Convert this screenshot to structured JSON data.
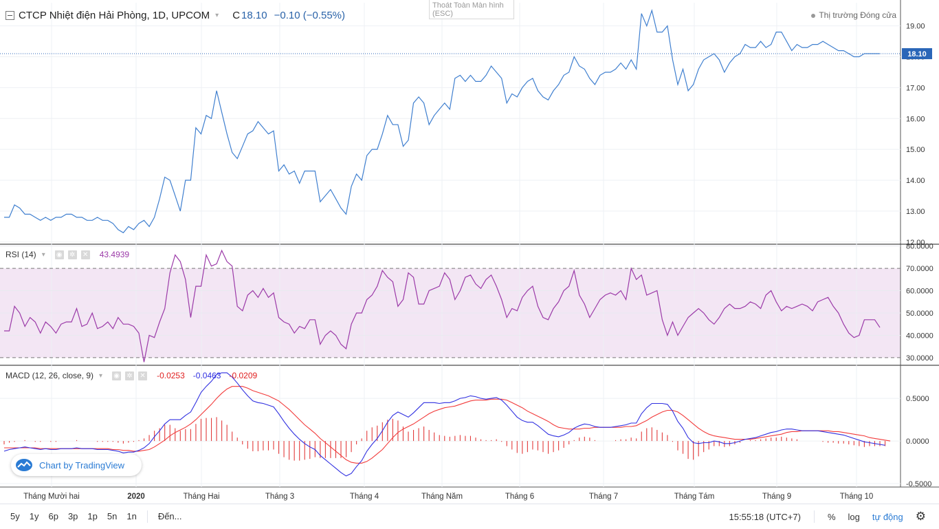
{
  "header": {
    "symbol_title": "CTCP Nhiệt điện Hải Phòng, 1D, UPCOM",
    "close_prefix": "C",
    "close_value": "18.10",
    "change": "−0.10 (−0.55%)"
  },
  "esc_hint": {
    "line1": "Thoát Toàn Màn hình",
    "line2": "(ESC)"
  },
  "market_status": "Thị trường Đóng cửa",
  "last_price_label": "18.10",
  "rsi_pane": {
    "title": "RSI (14)",
    "value": "43.4939"
  },
  "macd_pane": {
    "title": "MACD (12, 26, close, 9)",
    "v1": "-0.0253",
    "v2": "-0.0463",
    "v3": "-0.0209"
  },
  "logo_text": "Chart by TradingView",
  "bottom_bar": {
    "ranges": [
      "5y",
      "1y",
      "6p",
      "3p",
      "1p",
      "5n",
      "1n"
    ],
    "goto": "Đến...",
    "clock": "15:55:18 (UTC+7)",
    "percent": "%",
    "log": "log",
    "auto": "tự động"
  },
  "colors": {
    "price_line": "#3f7fcf",
    "rsi_line": "#9b3aa8",
    "rsi_band": "#f3e6f4",
    "macd_line": "#2f2fe0",
    "signal_line": "#f23a3a",
    "histogram": "#e23a3a"
  },
  "icons": [
    "collapse-icon",
    "settings-icon",
    "close-icon",
    "eye-icon",
    "tradingview-logo-icon",
    "gear-icon"
  ],
  "chart_data": [
    {
      "type": "line",
      "title": "CTCP Nhiệt điện Hải Phòng, 1D, UPCOM",
      "x_ticks": [
        "Tháng Mười hai",
        "2020",
        "Tháng Hai",
        "Tháng 3",
        "Tháng 4",
        "Tháng Năm",
        "Tháng 6",
        "Tháng 7",
        "Tháng Tám",
        "Tháng 9",
        "Tháng 10"
      ],
      "y_ticks": [
        "12.00",
        "13.00",
        "14.00",
        "15.00",
        "16.00",
        "17.00",
        "18.00",
        "19.00"
      ],
      "ylim": [
        11.95,
        19.75
      ],
      "last_value": 18.1,
      "series": [
        {
          "values": [
            12.8,
            12.8,
            13.2,
            13.1,
            12.9,
            12.9,
            12.8,
            12.7,
            12.8,
            12.7,
            12.8,
            12.8,
            12.9,
            12.9,
            12.8,
            12.8,
            12.7,
            12.7,
            12.8,
            12.7,
            12.7,
            12.6,
            12.4,
            12.3,
            12.5,
            12.4,
            12.6,
            12.7,
            12.5,
            12.8,
            13.4,
            14.1,
            14.0,
            13.5,
            13.0,
            14.0,
            14.0,
            15.7,
            15.5,
            16.1,
            16.0,
            16.9,
            16.2,
            15.5,
            14.9,
            14.7,
            15.1,
            15.5,
            15.6,
            15.9,
            15.7,
            15.5,
            15.6,
            14.3,
            14.5,
            14.2,
            14.3,
            13.9,
            14.3,
            14.3,
            14.3,
            13.3,
            13.5,
            13.7,
            13.4,
            13.1,
            12.9,
            13.8,
            14.2,
            14.0,
            14.8,
            15.0,
            15.0,
            15.5,
            16.1,
            15.8,
            15.8,
            15.1,
            15.3,
            16.5,
            16.7,
            16.5,
            15.8,
            16.1,
            16.3,
            16.5,
            16.3,
            17.3,
            17.4,
            17.2,
            17.4,
            17.2,
            17.2,
            17.4,
            17.7,
            17.5,
            17.3,
            16.5,
            16.8,
            16.7,
            17.0,
            17.2,
            17.3,
            16.9,
            16.7,
            16.6,
            16.9,
            17.1,
            17.4,
            17.5,
            18.0,
            17.7,
            17.6,
            17.3,
            17.1,
            17.4,
            17.5,
            17.5,
            17.6,
            17.8,
            17.6,
            17.9,
            17.6,
            19.4,
            19.0,
            19.5,
            18.8,
            18.8,
            19.0,
            17.9,
            17.1,
            17.6,
            16.9,
            17.1,
            17.6,
            17.9,
            18.0,
            18.1,
            17.9,
            17.5,
            17.8,
            18.0,
            18.1,
            18.4,
            18.3,
            18.3,
            18.5,
            18.3,
            18.4,
            18.8,
            18.8,
            18.5,
            18.2,
            18.4,
            18.3,
            18.3,
            18.4,
            18.4,
            18.5,
            18.4,
            18.3,
            18.2,
            18.2,
            18.1,
            18.0,
            18.0,
            18.1,
            18.1,
            18.1,
            18.1
          ]
        }
      ]
    },
    {
      "type": "line",
      "title": "RSI (14)",
      "y_ticks": [
        "30.0000",
        "40.0000",
        "50.0000",
        "60.0000",
        "70.0000",
        "80.0000"
      ],
      "ylim": [
        26.9,
        80.5
      ],
      "bands": [
        30,
        70
      ],
      "last_value": 43.4939,
      "series": [
        {
          "values": [
            42,
            42,
            53,
            50,
            44,
            48,
            46,
            41,
            46,
            44,
            41,
            45,
            46,
            46,
            52,
            44,
            45,
            50,
            43,
            44,
            46,
            43,
            48,
            45,
            45,
            44,
            41,
            28,
            40,
            39,
            46,
            52,
            68,
            76,
            73,
            65,
            48,
            62,
            62,
            76,
            71,
            72,
            78,
            73,
            71,
            53,
            51,
            58,
            60,
            57,
            61,
            57,
            59,
            48,
            46,
            45,
            41,
            44,
            43,
            47,
            47,
            36,
            40,
            42,
            40,
            36,
            34,
            45,
            50,
            50,
            56,
            58,
            62,
            69,
            66,
            64,
            53,
            56,
            68,
            66,
            54,
            54,
            60,
            61,
            62,
            68,
            65,
            56,
            60,
            66,
            67,
            63,
            61,
            65,
            67,
            62,
            56,
            48,
            52,
            51,
            57,
            60,
            62,
            53,
            48,
            47,
            52,
            55,
            60,
            62,
            69,
            58,
            54,
            48,
            52,
            56,
            58,
            59,
            58,
            60,
            56,
            70,
            65,
            67,
            58,
            59,
            60,
            47,
            40,
            46,
            40,
            44,
            48,
            50,
            52,
            50,
            47,
            45,
            48,
            52,
            54,
            52,
            52,
            53,
            55,
            54,
            52,
            58,
            60,
            55,
            51,
            53,
            52,
            53,
            54,
            53,
            51,
            55,
            56,
            57,
            53,
            50,
            45,
            41,
            39,
            40,
            47,
            47,
            47,
            43.5
          ]
        }
      ]
    },
    {
      "type": "line",
      "title": "MACD (12, 26, close, 9)",
      "y_ticks": [
        "-0.5000",
        "0.0000",
        "0.5000"
      ],
      "ylim": [
        -0.54,
        0.88
      ],
      "series": [
        {
          "name": "MACD",
          "values": [
            -0.12,
            -0.1,
            -0.09,
            -0.08,
            -0.07,
            -0.08,
            -0.09,
            -0.1,
            -0.09,
            -0.1,
            -0.1,
            -0.09,
            -0.09,
            -0.09,
            -0.08,
            -0.09,
            -0.09,
            -0.09,
            -0.1,
            -0.1,
            -0.1,
            -0.11,
            -0.12,
            -0.14,
            -0.13,
            -0.13,
            -0.11,
            -0.08,
            -0.03,
            0.05,
            0.12,
            0.2,
            0.25,
            0.25,
            0.25,
            0.3,
            0.34,
            0.45,
            0.57,
            0.64,
            0.7,
            0.78,
            0.8,
            0.8,
            0.75,
            0.68,
            0.6,
            0.53,
            0.47,
            0.45,
            0.44,
            0.42,
            0.4,
            0.32,
            0.23,
            0.15,
            0.08,
            0.02,
            -0.03,
            -0.07,
            -0.1,
            -0.17,
            -0.22,
            -0.27,
            -0.32,
            -0.37,
            -0.41,
            -0.38,
            -0.3,
            -0.23,
            -0.12,
            -0.04,
            0.03,
            0.12,
            0.22,
            0.3,
            0.34,
            0.31,
            0.28,
            0.33,
            0.39,
            0.45,
            0.45,
            0.45,
            0.44,
            0.45,
            0.45,
            0.47,
            0.5,
            0.51,
            0.53,
            0.52,
            0.5,
            0.49,
            0.5,
            0.51,
            0.48,
            0.42,
            0.35,
            0.28,
            0.24,
            0.22,
            0.22,
            0.18,
            0.13,
            0.08,
            0.06,
            0.05,
            0.07,
            0.1,
            0.15,
            0.18,
            0.2,
            0.19,
            0.17,
            0.16,
            0.16,
            0.16,
            0.17,
            0.18,
            0.19,
            0.21,
            0.21,
            0.32,
            0.39,
            0.44,
            0.44,
            0.44,
            0.43,
            0.35,
            0.23,
            0.15,
            0.04,
            -0.02,
            -0.03,
            -0.02,
            -0.02,
            0.0,
            -0.01,
            -0.03,
            -0.03,
            -0.02,
            0.0,
            0.02,
            0.03,
            0.04,
            0.06,
            0.08,
            0.1,
            0.11,
            0.13,
            0.14,
            0.14,
            0.13,
            0.12,
            0.12,
            0.12,
            0.12,
            0.11,
            0.1,
            0.09,
            0.08,
            0.07,
            0.05,
            0.03,
            0.01,
            -0.01,
            -0.02,
            -0.03,
            -0.04,
            -0.05
          ]
        },
        {
          "name": "Signal",
          "values": [
            -0.08,
            -0.08,
            -0.08,
            -0.08,
            -0.08,
            -0.08,
            -0.08,
            -0.09,
            -0.09,
            -0.09,
            -0.09,
            -0.09,
            -0.09,
            -0.09,
            -0.09,
            -0.09,
            -0.09,
            -0.09,
            -0.09,
            -0.09,
            -0.09,
            -0.1,
            -0.1,
            -0.11,
            -0.11,
            -0.12,
            -0.12,
            -0.11,
            -0.1,
            -0.07,
            -0.03,
            0.01,
            0.06,
            0.1,
            0.13,
            0.16,
            0.2,
            0.25,
            0.31,
            0.37,
            0.43,
            0.5,
            0.56,
            0.61,
            0.64,
            0.64,
            0.64,
            0.62,
            0.59,
            0.57,
            0.55,
            0.53,
            0.5,
            0.47,
            0.42,
            0.37,
            0.31,
            0.25,
            0.19,
            0.14,
            0.09,
            0.03,
            -0.02,
            -0.07,
            -0.12,
            -0.17,
            -0.22,
            -0.25,
            -0.26,
            -0.26,
            -0.24,
            -0.2,
            -0.15,
            -0.1,
            -0.03,
            0.04,
            0.1,
            0.14,
            0.17,
            0.2,
            0.24,
            0.28,
            0.32,
            0.35,
            0.37,
            0.39,
            0.4,
            0.41,
            0.43,
            0.45,
            0.47,
            0.48,
            0.48,
            0.48,
            0.49,
            0.49,
            0.49,
            0.48,
            0.45,
            0.42,
            0.39,
            0.35,
            0.32,
            0.29,
            0.26,
            0.23,
            0.19,
            0.16,
            0.15,
            0.14,
            0.14,
            0.14,
            0.15,
            0.15,
            0.16,
            0.16,
            0.16,
            0.16,
            0.16,
            0.16,
            0.17,
            0.17,
            0.18,
            0.21,
            0.24,
            0.28,
            0.31,
            0.34,
            0.36,
            0.36,
            0.34,
            0.3,
            0.25,
            0.2,
            0.15,
            0.11,
            0.08,
            0.06,
            0.05,
            0.04,
            0.03,
            0.02,
            0.02,
            0.02,
            0.02,
            0.03,
            0.04,
            0.05,
            0.06,
            0.07,
            0.08,
            0.1,
            0.11,
            0.11,
            0.12,
            0.12,
            0.12,
            0.12,
            0.12,
            0.12,
            0.11,
            0.11,
            0.1,
            0.09,
            0.08,
            0.07,
            0.06,
            0.04,
            0.03,
            0.02,
            0.01,
            0.0
          ]
        }
      ]
    }
  ]
}
